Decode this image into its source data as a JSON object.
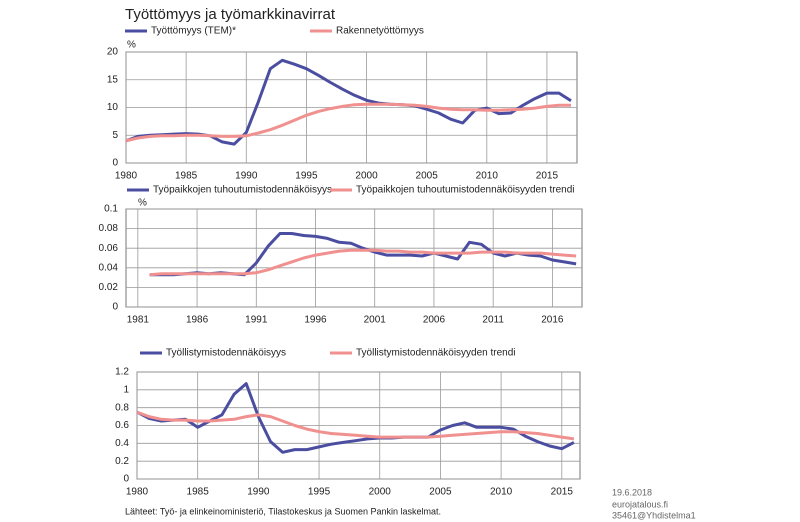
{
  "title": "Työttömyys ja työmarkkinavirrat",
  "source": "Lähteet: Työ- ja elinkeinoministeriö, Tilastokeskus ja Suomen Pankin laskelmat.",
  "footer": [
    "19.6.2018",
    "eurojatalous.fi",
    "35461@Yhdistelma1"
  ],
  "chart_data": [
    {
      "type": "line",
      "y_unit": "%",
      "grid": true,
      "x": [
        1980,
        1981,
        1982,
        1983,
        1984,
        1985,
        1986,
        1987,
        1988,
        1989,
        1990,
        1991,
        1992,
        1993,
        1994,
        1995,
        1996,
        1997,
        1998,
        1999,
        2000,
        2001,
        2002,
        2003,
        2004,
        2005,
        2006,
        2007,
        2008,
        2009,
        2010,
        2011,
        2012,
        2013,
        2014,
        2015,
        2016,
        2017
      ],
      "xlim": [
        1980,
        2017.5
      ],
      "xticks": [
        1980,
        1985,
        1990,
        1995,
        2000,
        2005,
        2010,
        2015
      ],
      "ylim": [
        0,
        20
      ],
      "yticks": [
        0,
        5,
        10,
        15,
        20
      ],
      "series": [
        {
          "name": "Työttömyys (TEM)*",
          "color": "#4b4ea0",
          "values": [
            4.0,
            4.8,
            5.0,
            5.1,
            5.2,
            5.3,
            5.2,
            4.9,
            3.8,
            3.4,
            5.5,
            11.0,
            17.0,
            18.5,
            17.8,
            17.0,
            15.8,
            14.5,
            13.3,
            12.2,
            11.3,
            10.8,
            10.6,
            10.5,
            10.3,
            9.7,
            9.0,
            7.9,
            7.2,
            9.5,
            9.9,
            8.9,
            9.0,
            10.4,
            11.6,
            12.6,
            12.6,
            11.2
          ]
        },
        {
          "name": "Rakennetyöttömyys",
          "color": "#f0908f",
          "values": [
            4.0,
            4.5,
            4.8,
            4.9,
            4.9,
            5.0,
            5.0,
            4.9,
            4.8,
            4.8,
            4.9,
            5.4,
            6.0,
            6.8,
            7.7,
            8.6,
            9.3,
            9.8,
            10.2,
            10.5,
            10.6,
            10.6,
            10.6,
            10.5,
            10.4,
            10.2,
            9.9,
            9.7,
            9.6,
            9.6,
            9.5,
            9.5,
            9.6,
            9.7,
            9.9,
            10.2,
            10.4,
            10.4
          ]
        }
      ]
    },
    {
      "type": "line",
      "y_unit": "%",
      "grid": true,
      "x": [
        1982,
        1983,
        1984,
        1985,
        1986,
        1987,
        1988,
        1989,
        1990,
        1991,
        1992,
        1993,
        1994,
        1995,
        1996,
        1997,
        1998,
        1999,
        2000,
        2001,
        2002,
        2003,
        2004,
        2005,
        2006,
        2007,
        2008,
        2009,
        2010,
        2011,
        2012,
        2013,
        2014,
        2015,
        2016,
        2017,
        2018
      ],
      "xlim": [
        1980,
        2018.5
      ],
      "xticks": [
        1981,
        1986,
        1991,
        1996,
        2001,
        2006,
        2011,
        2016
      ],
      "ylim": [
        0,
        0.1
      ],
      "yticks": [
        0,
        0.02,
        0.04,
        0.06,
        0.08,
        0.1
      ],
      "series": [
        {
          "name": "Työpaikkojen tuhoutumistodennäköisyys",
          "color": "#4b4ea0",
          "values": [
            0.033,
            0.033,
            0.033,
            0.034,
            0.035,
            0.034,
            0.035,
            0.034,
            0.033,
            0.045,
            0.062,
            0.075,
            0.075,
            0.073,
            0.072,
            0.07,
            0.066,
            0.065,
            0.06,
            0.056,
            0.053,
            0.053,
            0.053,
            0.052,
            0.055,
            0.052,
            0.049,
            0.066,
            0.064,
            0.055,
            0.052,
            0.055,
            0.053,
            0.052,
            0.048,
            0.046,
            0.044
          ]
        },
        {
          "name": "Työpaikkojen tuhoutumistodennäköisyyden trendi",
          "color": "#f0908f",
          "values": [
            0.033,
            0.034,
            0.034,
            0.034,
            0.034,
            0.034,
            0.034,
            0.034,
            0.034,
            0.035,
            0.038,
            0.042,
            0.046,
            0.05,
            0.053,
            0.055,
            0.057,
            0.058,
            0.058,
            0.058,
            0.057,
            0.057,
            0.056,
            0.056,
            0.055,
            0.055,
            0.055,
            0.055,
            0.056,
            0.056,
            0.056,
            0.055,
            0.055,
            0.055,
            0.054,
            0.053,
            0.052
          ]
        }
      ]
    },
    {
      "type": "line",
      "grid": true,
      "x": [
        1980,
        1981,
        1982,
        1983,
        1984,
        1985,
        1986,
        1987,
        1988,
        1989,
        1990,
        1991,
        1992,
        1993,
        1994,
        1995,
        1996,
        1997,
        1998,
        1999,
        2000,
        2001,
        2002,
        2003,
        2004,
        2005,
        2006,
        2007,
        2008,
        2009,
        2010,
        2011,
        2012,
        2013,
        2014,
        2015,
        2016
      ],
      "xlim": [
        1980,
        2016.5
      ],
      "xticks": [
        1980,
        1985,
        1990,
        1995,
        2000,
        2005,
        2010,
        2015
      ],
      "ylim": [
        0,
        1.2
      ],
      "yticks": [
        0,
        0.2,
        0.4,
        0.6,
        0.8,
        1,
        1.2
      ],
      "series": [
        {
          "name": "Työllistymistodennäköisyys",
          "color": "#4b4ea0",
          "values": [
            0.75,
            0.68,
            0.65,
            0.66,
            0.67,
            0.58,
            0.65,
            0.72,
            0.95,
            1.07,
            0.7,
            0.42,
            0.3,
            0.33,
            0.33,
            0.36,
            0.39,
            0.41,
            0.43,
            0.45,
            0.46,
            0.46,
            0.47,
            0.47,
            0.47,
            0.55,
            0.6,
            0.63,
            0.58,
            0.58,
            0.58,
            0.56,
            0.48,
            0.42,
            0.37,
            0.34,
            0.41
          ]
        },
        {
          "name": "Työllistymistodennäköisyyden trendi",
          "color": "#f0908f",
          "values": [
            0.75,
            0.7,
            0.67,
            0.66,
            0.66,
            0.65,
            0.65,
            0.66,
            0.67,
            0.7,
            0.72,
            0.7,
            0.65,
            0.6,
            0.56,
            0.53,
            0.51,
            0.5,
            0.49,
            0.48,
            0.47,
            0.47,
            0.47,
            0.47,
            0.47,
            0.48,
            0.49,
            0.5,
            0.51,
            0.52,
            0.53,
            0.53,
            0.52,
            0.51,
            0.49,
            0.47,
            0.45
          ]
        }
      ]
    }
  ]
}
